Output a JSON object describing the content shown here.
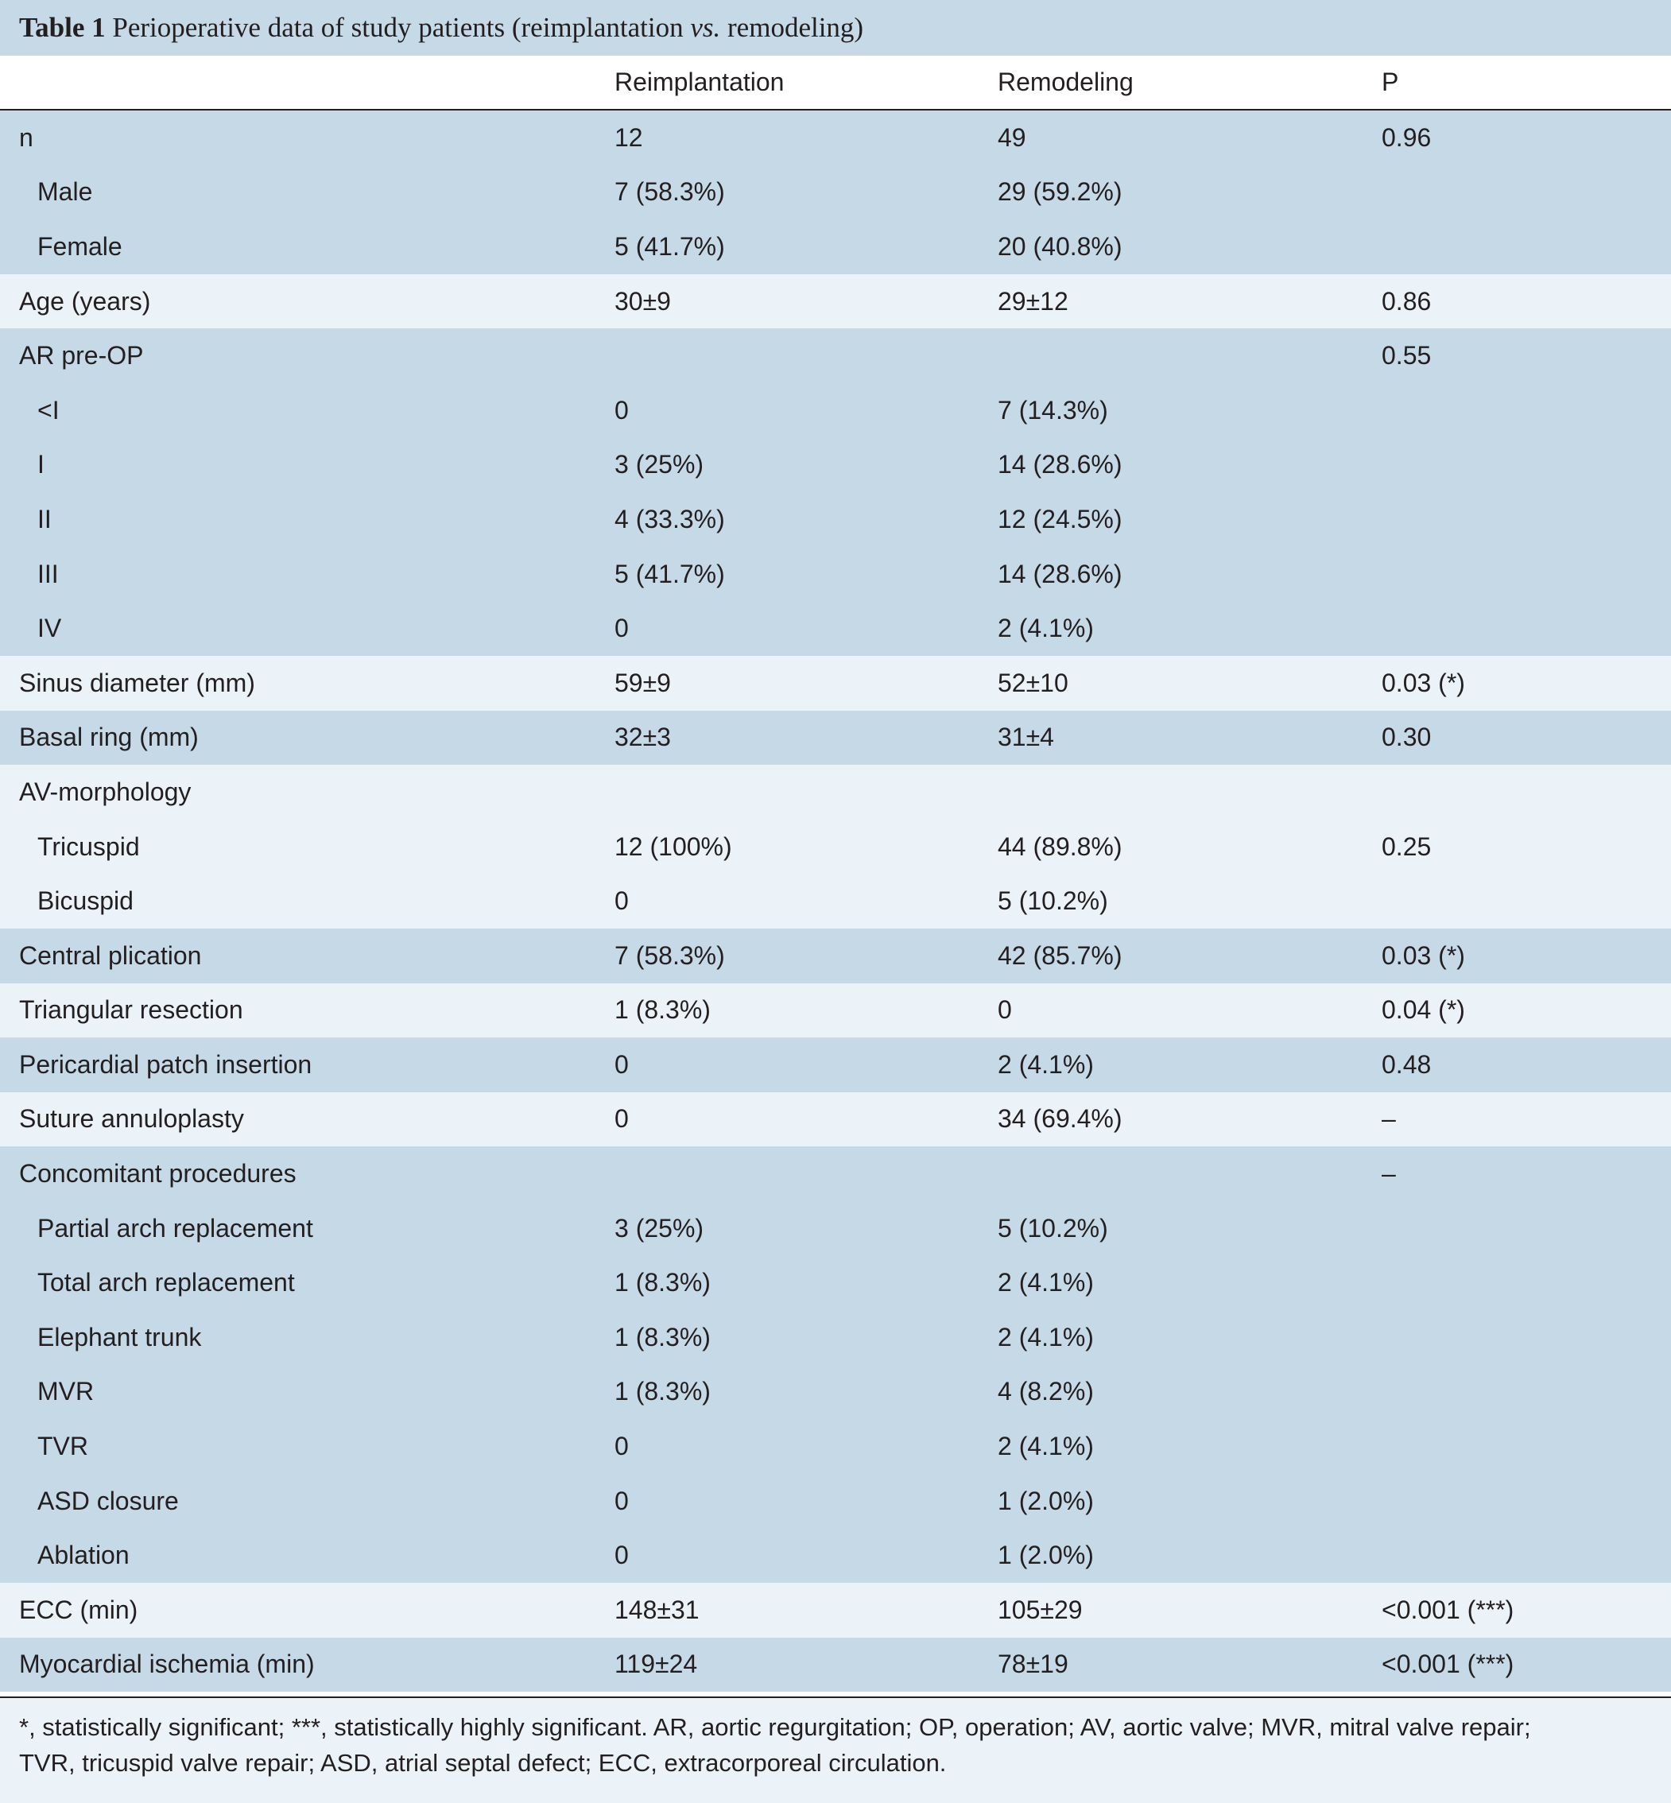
{
  "title": {
    "label": "Table 1",
    "text_before": " Perioperative data of study patients (reimplantation ",
    "vs": "vs.",
    "text_after": " remodeling)"
  },
  "columns": [
    "",
    "Reimplantation",
    "Remodeling",
    "P"
  ],
  "rows": [
    {
      "label": "n",
      "indent": false,
      "shade": "dark",
      "reimp": "12",
      "remod": "49",
      "p": "0.96"
    },
    {
      "label": "Male",
      "indent": true,
      "shade": "dark",
      "reimp": "7 (58.3%)",
      "remod": "29 (59.2%)",
      "p": ""
    },
    {
      "label": "Female",
      "indent": true,
      "shade": "dark",
      "reimp": "5 (41.7%)",
      "remod": "20 (40.8%)",
      "p": ""
    },
    {
      "label": "Age (years)",
      "indent": false,
      "shade": "light",
      "reimp": "30±9",
      "remod": "29±12",
      "p": "0.86"
    },
    {
      "label": "AR pre-OP",
      "indent": false,
      "shade": "dark",
      "reimp": "",
      "remod": "",
      "p": "0.55"
    },
    {
      "label": "<I",
      "indent": true,
      "shade": "dark",
      "reimp": "0",
      "remod": "7 (14.3%)",
      "p": ""
    },
    {
      "label": "I",
      "indent": true,
      "shade": "dark",
      "reimp": "3 (25%)",
      "remod": "14 (28.6%)",
      "p": ""
    },
    {
      "label": "II",
      "indent": true,
      "shade": "dark",
      "reimp": "4 (33.3%)",
      "remod": "12 (24.5%)",
      "p": ""
    },
    {
      "label": "III",
      "indent": true,
      "shade": "dark",
      "reimp": "5 (41.7%)",
      "remod": "14 (28.6%)",
      "p": ""
    },
    {
      "label": "IV",
      "indent": true,
      "shade": "dark",
      "reimp": "0",
      "remod": "2 (4.1%)",
      "p": ""
    },
    {
      "label": "Sinus diameter (mm)",
      "indent": false,
      "shade": "light",
      "reimp": "59±9",
      "remod": "52±10",
      "p": "0.03 (*)"
    },
    {
      "label": "Basal ring (mm)",
      "indent": false,
      "shade": "dark",
      "reimp": "32±3",
      "remod": "31±4",
      "p": "0.30"
    },
    {
      "label": "AV-morphology",
      "indent": false,
      "shade": "light",
      "reimp": "",
      "remod": "",
      "p": ""
    },
    {
      "label": "Tricuspid",
      "indent": true,
      "shade": "light",
      "reimp": "12 (100%)",
      "remod": "44 (89.8%)",
      "p": "0.25"
    },
    {
      "label": "Bicuspid",
      "indent": true,
      "shade": "light",
      "reimp": "0",
      "remod": "5 (10.2%)",
      "p": ""
    },
    {
      "label": "Central plication",
      "indent": false,
      "shade": "dark",
      "reimp": "7 (58.3%)",
      "remod": "42 (85.7%)",
      "p": "0.03 (*)"
    },
    {
      "label": "Triangular resection",
      "indent": false,
      "shade": "light",
      "reimp": "1 (8.3%)",
      "remod": "0",
      "p": "0.04 (*)"
    },
    {
      "label": "Pericardial patch insertion",
      "indent": false,
      "shade": "dark",
      "reimp": "0",
      "remod": "2 (4.1%)",
      "p": "0.48"
    },
    {
      "label": "Suture annuloplasty",
      "indent": false,
      "shade": "light",
      "reimp": "0",
      "remod": "34 (69.4%)",
      "p": "–"
    },
    {
      "label": "Concomitant procedures",
      "indent": false,
      "shade": "dark",
      "reimp": "",
      "remod": "",
      "p": "–"
    },
    {
      "label": "Partial arch replacement",
      "indent": true,
      "shade": "dark",
      "reimp": "3 (25%)",
      "remod": "5 (10.2%)",
      "p": ""
    },
    {
      "label": "Total arch replacement",
      "indent": true,
      "shade": "dark",
      "reimp": "1 (8.3%)",
      "remod": "2 (4.1%)",
      "p": ""
    },
    {
      "label": "Elephant trunk",
      "indent": true,
      "shade": "dark",
      "reimp": "1 (8.3%)",
      "remod": "2 (4.1%)",
      "p": ""
    },
    {
      "label": "MVR",
      "indent": true,
      "shade": "dark",
      "reimp": "1 (8.3%)",
      "remod": "4 (8.2%)",
      "p": ""
    },
    {
      "label": "TVR",
      "indent": true,
      "shade": "dark",
      "reimp": "0",
      "remod": "2 (4.1%)",
      "p": ""
    },
    {
      "label": "ASD closure",
      "indent": true,
      "shade": "dark",
      "reimp": "0",
      "remod": "1 (2.0%)",
      "p": ""
    },
    {
      "label": "Ablation",
      "indent": true,
      "shade": "dark",
      "reimp": "0",
      "remod": "1 (2.0%)",
      "p": ""
    },
    {
      "label": "ECC (min)",
      "indent": false,
      "shade": "light",
      "reimp": "148±31",
      "remod": "105±29",
      "p": "<0.001 (***)"
    },
    {
      "label": "Myocardial ischemia (min)",
      "indent": false,
      "shade": "dark",
      "reimp": "119±24",
      "remod": "78±19",
      "p": "<0.001 (***)"
    }
  ],
  "footnote": {
    "line1": "*, statistically significant; ***, statistically highly significant. AR, aortic regurgitation; OP, operation; AV, aortic valve; MVR, mitral valve repair;",
    "line2": "TVR, tricuspid valve repair; ASD, atrial septal defect; ECC, extracorporeal circulation."
  },
  "colors": {
    "dark_band": "#c6d9e6",
    "light_band": "#ebf3f8",
    "rule": "#231f20"
  }
}
